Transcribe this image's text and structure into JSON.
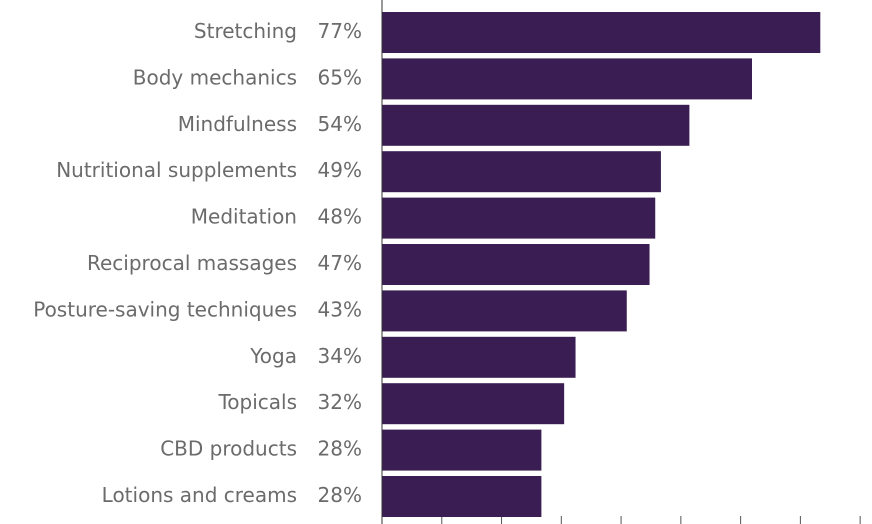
{
  "chart_data": {
    "type": "bar",
    "orientation": "horizontal",
    "categories": [
      "Stretching",
      "Body mechanics",
      "Mindfulness",
      "Nutritional supplements",
      "Meditation",
      "Reciprocal massages",
      "Posture-saving techniques",
      "Yoga",
      "Topicals",
      "CBD products",
      "Lotions and creams"
    ],
    "values": [
      77,
      65,
      54,
      49,
      48,
      47,
      43,
      34,
      32,
      28,
      28
    ],
    "value_labels": [
      "77%",
      "65%",
      "54%",
      "49%",
      "48%",
      "47%",
      "43%",
      "34%",
      "32%",
      "28%",
      "28%"
    ],
    "color": "#3a1d52",
    "xlim": [
      0,
      84.5
    ],
    "xticks": [
      0,
      10.5,
      21,
      31.5,
      42,
      52.5,
      63,
      73.5,
      84
    ]
  }
}
